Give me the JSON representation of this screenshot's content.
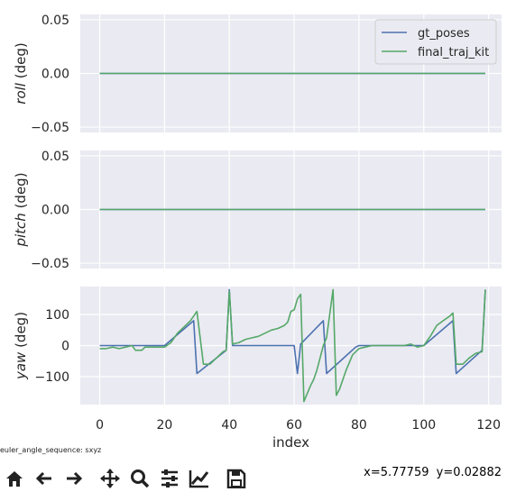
{
  "chart_data": [
    {
      "type": "line",
      "ylabel_italic": "roll",
      "ylabel_unit": " (deg)",
      "xlim": [
        -6,
        124
      ],
      "ylim": [
        -0.055,
        0.055
      ],
      "yticks": [
        -0.05,
        0.0,
        0.05
      ],
      "ytick_labels": [
        "−0.05",
        "0.00",
        "0.05"
      ],
      "xticks": [
        0,
        20,
        40,
        60,
        80,
        100,
        120
      ],
      "grid": true,
      "legend_position": "top-right",
      "series": [
        {
          "name": "gt_poses",
          "color": "#4c72b0",
          "x": [
            0,
            119
          ],
          "y": [
            0,
            0
          ]
        },
        {
          "name": "final_traj_kit",
          "color": "#55a868",
          "x": [
            0,
            119
          ],
          "y": [
            0,
            0
          ]
        }
      ]
    },
    {
      "type": "line",
      "ylabel_italic": "pitch",
      "ylabel_unit": " (deg)",
      "xlim": [
        -6,
        124
      ],
      "ylim": [
        -0.055,
        0.055
      ],
      "yticks": [
        -0.05,
        0.0,
        0.05
      ],
      "ytick_labels": [
        "−0.05",
        "0.00",
        "0.05"
      ],
      "xticks": [
        0,
        20,
        40,
        60,
        80,
        100,
        120
      ],
      "grid": true,
      "series": [
        {
          "name": "gt_poses",
          "color": "#4c72b0",
          "x": [
            0,
            119
          ],
          "y": [
            0,
            0
          ]
        },
        {
          "name": "final_traj_kit",
          "color": "#55a868",
          "x": [
            0,
            119
          ],
          "y": [
            0,
            0
          ]
        }
      ]
    },
    {
      "type": "line",
      "ylabel_italic": "yaw",
      "ylabel_unit": " (deg)",
      "xlabel": "index",
      "xlim": [
        -6,
        124
      ],
      "ylim": [
        -190,
        190
      ],
      "yticks": [
        -100,
        0,
        100
      ],
      "ytick_labels": [
        "−100",
        "0",
        "100"
      ],
      "xticks": [
        0,
        20,
        40,
        60,
        80,
        100,
        120
      ],
      "xtick_labels": [
        "0",
        "20",
        "40",
        "60",
        "80",
        "100",
        "120"
      ],
      "grid": true,
      "series": [
        {
          "name": "gt_poses",
          "color": "#4c72b0",
          "x": [
            0,
            20,
            29,
            30,
            39,
            40,
            41,
            60,
            61,
            62,
            69,
            70,
            79,
            80,
            100,
            109,
            110,
            118,
            119
          ],
          "y": [
            0,
            0,
            80,
            -90,
            -15,
            180,
            0,
            0,
            -90,
            5,
            80,
            -90,
            -5,
            0,
            0,
            80,
            -90,
            -15,
            180
          ]
        },
        {
          "name": "final_traj_kit",
          "color": "#55a868",
          "x": [
            0,
            2,
            4,
            6,
            8,
            10,
            11,
            13,
            14,
            16,
            18,
            20,
            22,
            24,
            26,
            28,
            29,
            30,
            32,
            34,
            36,
            38,
            39,
            40,
            41,
            43,
            45,
            47,
            49,
            51,
            53,
            55,
            57,
            58,
            59,
            60,
            61,
            62,
            63,
            64,
            65,
            66,
            67,
            68,
            69,
            70,
            72,
            73,
            74,
            76,
            78,
            80,
            82,
            84,
            86,
            88,
            90,
            92,
            94,
            96,
            98,
            100,
            102,
            104,
            106,
            108,
            109,
            110,
            112,
            114,
            116,
            118,
            119
          ],
          "y": [
            -10,
            -10,
            -5,
            -10,
            -5,
            0,
            -15,
            -15,
            -5,
            -5,
            -5,
            -5,
            10,
            40,
            60,
            80,
            95,
            110,
            -60,
            -60,
            -40,
            -20,
            -15,
            175,
            5,
            10,
            20,
            25,
            30,
            40,
            50,
            55,
            65,
            75,
            110,
            115,
            150,
            165,
            -180,
            -155,
            -130,
            -110,
            -80,
            -40,
            0,
            25,
            180,
            -160,
            -140,
            -80,
            -30,
            -10,
            -5,
            0,
            0,
            0,
            0,
            0,
            0,
            5,
            -5,
            0,
            30,
            65,
            80,
            95,
            105,
            -60,
            -60,
            -40,
            -25,
            -20,
            180
          ]
        }
      ]
    }
  ],
  "footnote": "euler_angle_sequence: sxyz",
  "toolbar": {
    "buttons": [
      {
        "name": "home-button",
        "icon": "home-icon"
      },
      {
        "name": "back-button",
        "icon": "arrow-left-icon"
      },
      {
        "name": "forward-button",
        "icon": "arrow-right-icon"
      },
      {
        "name": "pan-button",
        "icon": "move-icon"
      },
      {
        "name": "zoom-button",
        "icon": "magnifier-icon"
      },
      {
        "name": "configure-subplots-button",
        "icon": "sliders-icon"
      },
      {
        "name": "edit-axis-button",
        "icon": "chart-edit-icon"
      },
      {
        "name": "save-button",
        "icon": "floppy-disk-icon"
      }
    ],
    "x_readout": "x=5.77759",
    "y_readout": "y=0.02882"
  }
}
